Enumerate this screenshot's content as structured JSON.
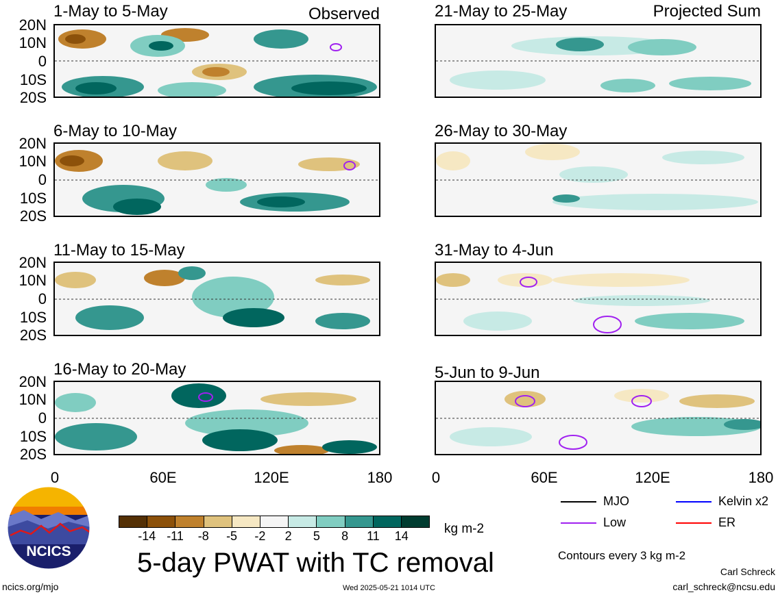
{
  "panels": {
    "left": [
      {
        "title": "1-May to 5-May",
        "label": "Observed"
      },
      {
        "title": "6-May to 10-May",
        "label": ""
      },
      {
        "title": "11-May to 15-May",
        "label": ""
      },
      {
        "title": "16-May to 20-May",
        "label": ""
      }
    ],
    "right": [
      {
        "title": "21-May to 25-May",
        "label": "Projected Sum"
      },
      {
        "title": "26-May to 30-May",
        "label": ""
      },
      {
        "title": "31-May to 4-Jun",
        "label": ""
      },
      {
        "title": "5-Jun to 9-Jun",
        "label": ""
      }
    ]
  },
  "axes": {
    "y_ticks": [
      "20N",
      "10N",
      "0",
      "10S",
      "20S"
    ],
    "x_ticks": [
      "0",
      "60E",
      "120E",
      "180"
    ]
  },
  "colorbar": {
    "tick_labels": [
      "-14",
      "-11",
      "-8",
      "-5",
      "-2",
      "2",
      "5",
      "8",
      "11",
      "14"
    ],
    "units": "kg m-2",
    "colors": [
      "#543005",
      "#8c510a",
      "#bf812d",
      "#dfc27d",
      "#f6e8c3",
      "#f5f5f5",
      "#c7eae5",
      "#80cdc1",
      "#35978f",
      "#01665e",
      "#003c30"
    ]
  },
  "main_title": "5-day PWAT with TC removal",
  "logo": {
    "text": "NCICS"
  },
  "legend": {
    "items": [
      {
        "label": "MJO",
        "color": "#000000"
      },
      {
        "label": "Kelvin x2",
        "color": "#0000ff"
      },
      {
        "label": "Low",
        "color": "#a020f0"
      },
      {
        "label": "ER",
        "color": "#ff0000"
      }
    ],
    "contours_note": "Contours every 3 kg m-2"
  },
  "footer": {
    "url": "ncics.org/mjo",
    "timestamp": "Wed 2025-05-21 1014 UTC",
    "author": "Carl Schreck",
    "email": "carl_schreck@ncsu.edu"
  }
}
